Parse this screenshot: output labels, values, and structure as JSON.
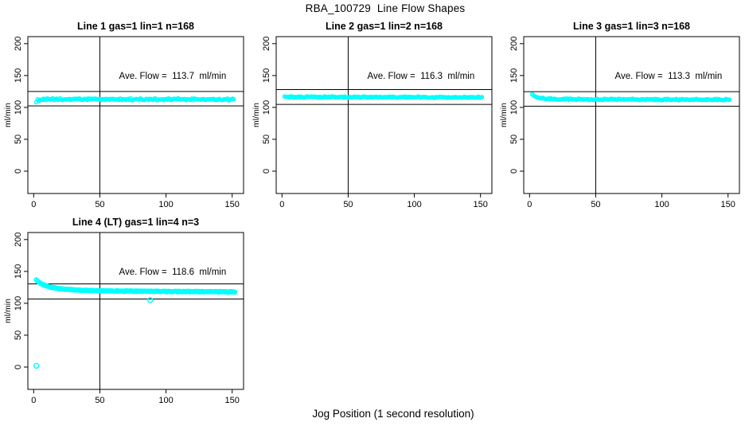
{
  "figure": {
    "title": "RBA_100729  Line Flow Shapes",
    "xlabel": "Jog Position (1 second resolution)",
    "background": "#ffffff",
    "point_color": "#00ffff",
    "axis_color": "#000000"
  },
  "chart_data": [
    {
      "type": "scatter",
      "title": "Line 1 gas=1 lin=1 n=168",
      "ylabel": "ml/min",
      "annotation": "Ave. Flow =  113.7  ml/min",
      "annotation_xy": [
        105,
        150
      ],
      "ave_flow": 113.7,
      "n": 168,
      "xlim": [
        -4.4,
        158.6
      ],
      "ylim": [
        -35,
        211
      ],
      "xticks": [
        0,
        50,
        100,
        150
      ],
      "yticks": [
        0,
        50,
        100,
        150,
        200
      ],
      "vline_x": 50,
      "hlines": [
        125.07,
        102.33
      ],
      "x_range": [
        2,
        151
      ],
      "samples": 168,
      "passes": 1,
      "noise": 1.25,
      "point_radius": 2.1,
      "profile": [
        [
          2,
          108.5
        ],
        [
          3,
          111.3
        ],
        [
          5,
          112.4
        ],
        [
          40,
          112.8
        ],
        [
          100,
          112.6
        ],
        [
          151,
          112.4
        ]
      ],
      "outliers": []
    },
    {
      "type": "scatter",
      "title": "Line 2 gas=1 lin=2 n=168",
      "ylabel": "ml/min",
      "annotation": "Ave. Flow =  116.3  ml/min",
      "annotation_xy": [
        105,
        150
      ],
      "ave_flow": 116.3,
      "n": 168,
      "xlim": [
        -4.4,
        158.6
      ],
      "ylim": [
        -35,
        211
      ],
      "xticks": [
        0,
        50,
        100,
        150
      ],
      "yticks": [
        0,
        50,
        100,
        150,
        200
      ],
      "vline_x": 50,
      "hlines": [
        127.93,
        104.67
      ],
      "x_range": [
        2,
        151
      ],
      "samples": 168,
      "passes": 1,
      "noise": 0.85,
      "point_radius": 2.1,
      "profile": [
        [
          2,
          117.4
        ],
        [
          4,
          116.8
        ],
        [
          12,
          116.3
        ],
        [
          80,
          116.1
        ],
        [
          151,
          115.8
        ]
      ],
      "outliers": []
    },
    {
      "type": "scatter",
      "title": "Line 3 gas=1 lin=3 n=168",
      "ylabel": "ml/min",
      "annotation": "Ave. Flow =  113.3  ml/min",
      "annotation_xy": [
        105,
        150
      ],
      "ave_flow": 113.3,
      "n": 168,
      "xlim": [
        -4.4,
        158.6
      ],
      "ylim": [
        -35,
        211
      ],
      "xticks": [
        0,
        50,
        100,
        150
      ],
      "yticks": [
        0,
        50,
        100,
        150,
        200
      ],
      "vline_x": 50,
      "hlines": [
        124.63,
        101.97
      ],
      "x_range": [
        2,
        151
      ],
      "samples": 168,
      "passes": 1,
      "noise": 0.9,
      "point_radius": 2.1,
      "profile": [
        [
          2,
          120.6
        ],
        [
          4,
          118.0
        ],
        [
          6,
          116.0
        ],
        [
          9,
          114.3
        ],
        [
          13,
          113.3
        ],
        [
          20,
          112.8
        ],
        [
          60,
          112.5
        ],
        [
          151,
          112.1
        ]
      ],
      "outliers": []
    },
    {
      "type": "scatter",
      "title": "Line 4 (LT) gas=1 lin=4 n=3",
      "ylabel": "ml/min",
      "annotation": "Ave. Flow =  118.6  ml/min",
      "annotation_xy": [
        105,
        150
      ],
      "ave_flow": 118.6,
      "n": 3,
      "xlim": [
        -4.4,
        158.6
      ],
      "ylim": [
        -35,
        211
      ],
      "xticks": [
        0,
        50,
        100,
        150
      ],
      "yticks": [
        0,
        50,
        100,
        150,
        200
      ],
      "vline_x": 50,
      "hlines": [
        130.46,
        106.74
      ],
      "x_range": [
        2,
        152
      ],
      "samples": 150,
      "passes": 3,
      "noise": 0.55,
      "point_radius": 2.4,
      "profile": [
        [
          2,
          136.5
        ],
        [
          3,
          134.5
        ],
        [
          5,
          131.5
        ],
        [
          7,
          129.3
        ],
        [
          9,
          127.6
        ],
        [
          12,
          125.8
        ],
        [
          15,
          124.4
        ],
        [
          19,
          123.1
        ],
        [
          24,
          122.0
        ],
        [
          30,
          121.1
        ],
        [
          38,
          120.4
        ],
        [
          48,
          119.8
        ],
        [
          60,
          119.4
        ],
        [
          80,
          118.9
        ],
        [
          105,
          118.5
        ],
        [
          130,
          118.2
        ],
        [
          152,
          117.9
        ]
      ],
      "outliers": [
        [
          2,
          2
        ],
        [
          88,
          105
        ]
      ]
    }
  ]
}
